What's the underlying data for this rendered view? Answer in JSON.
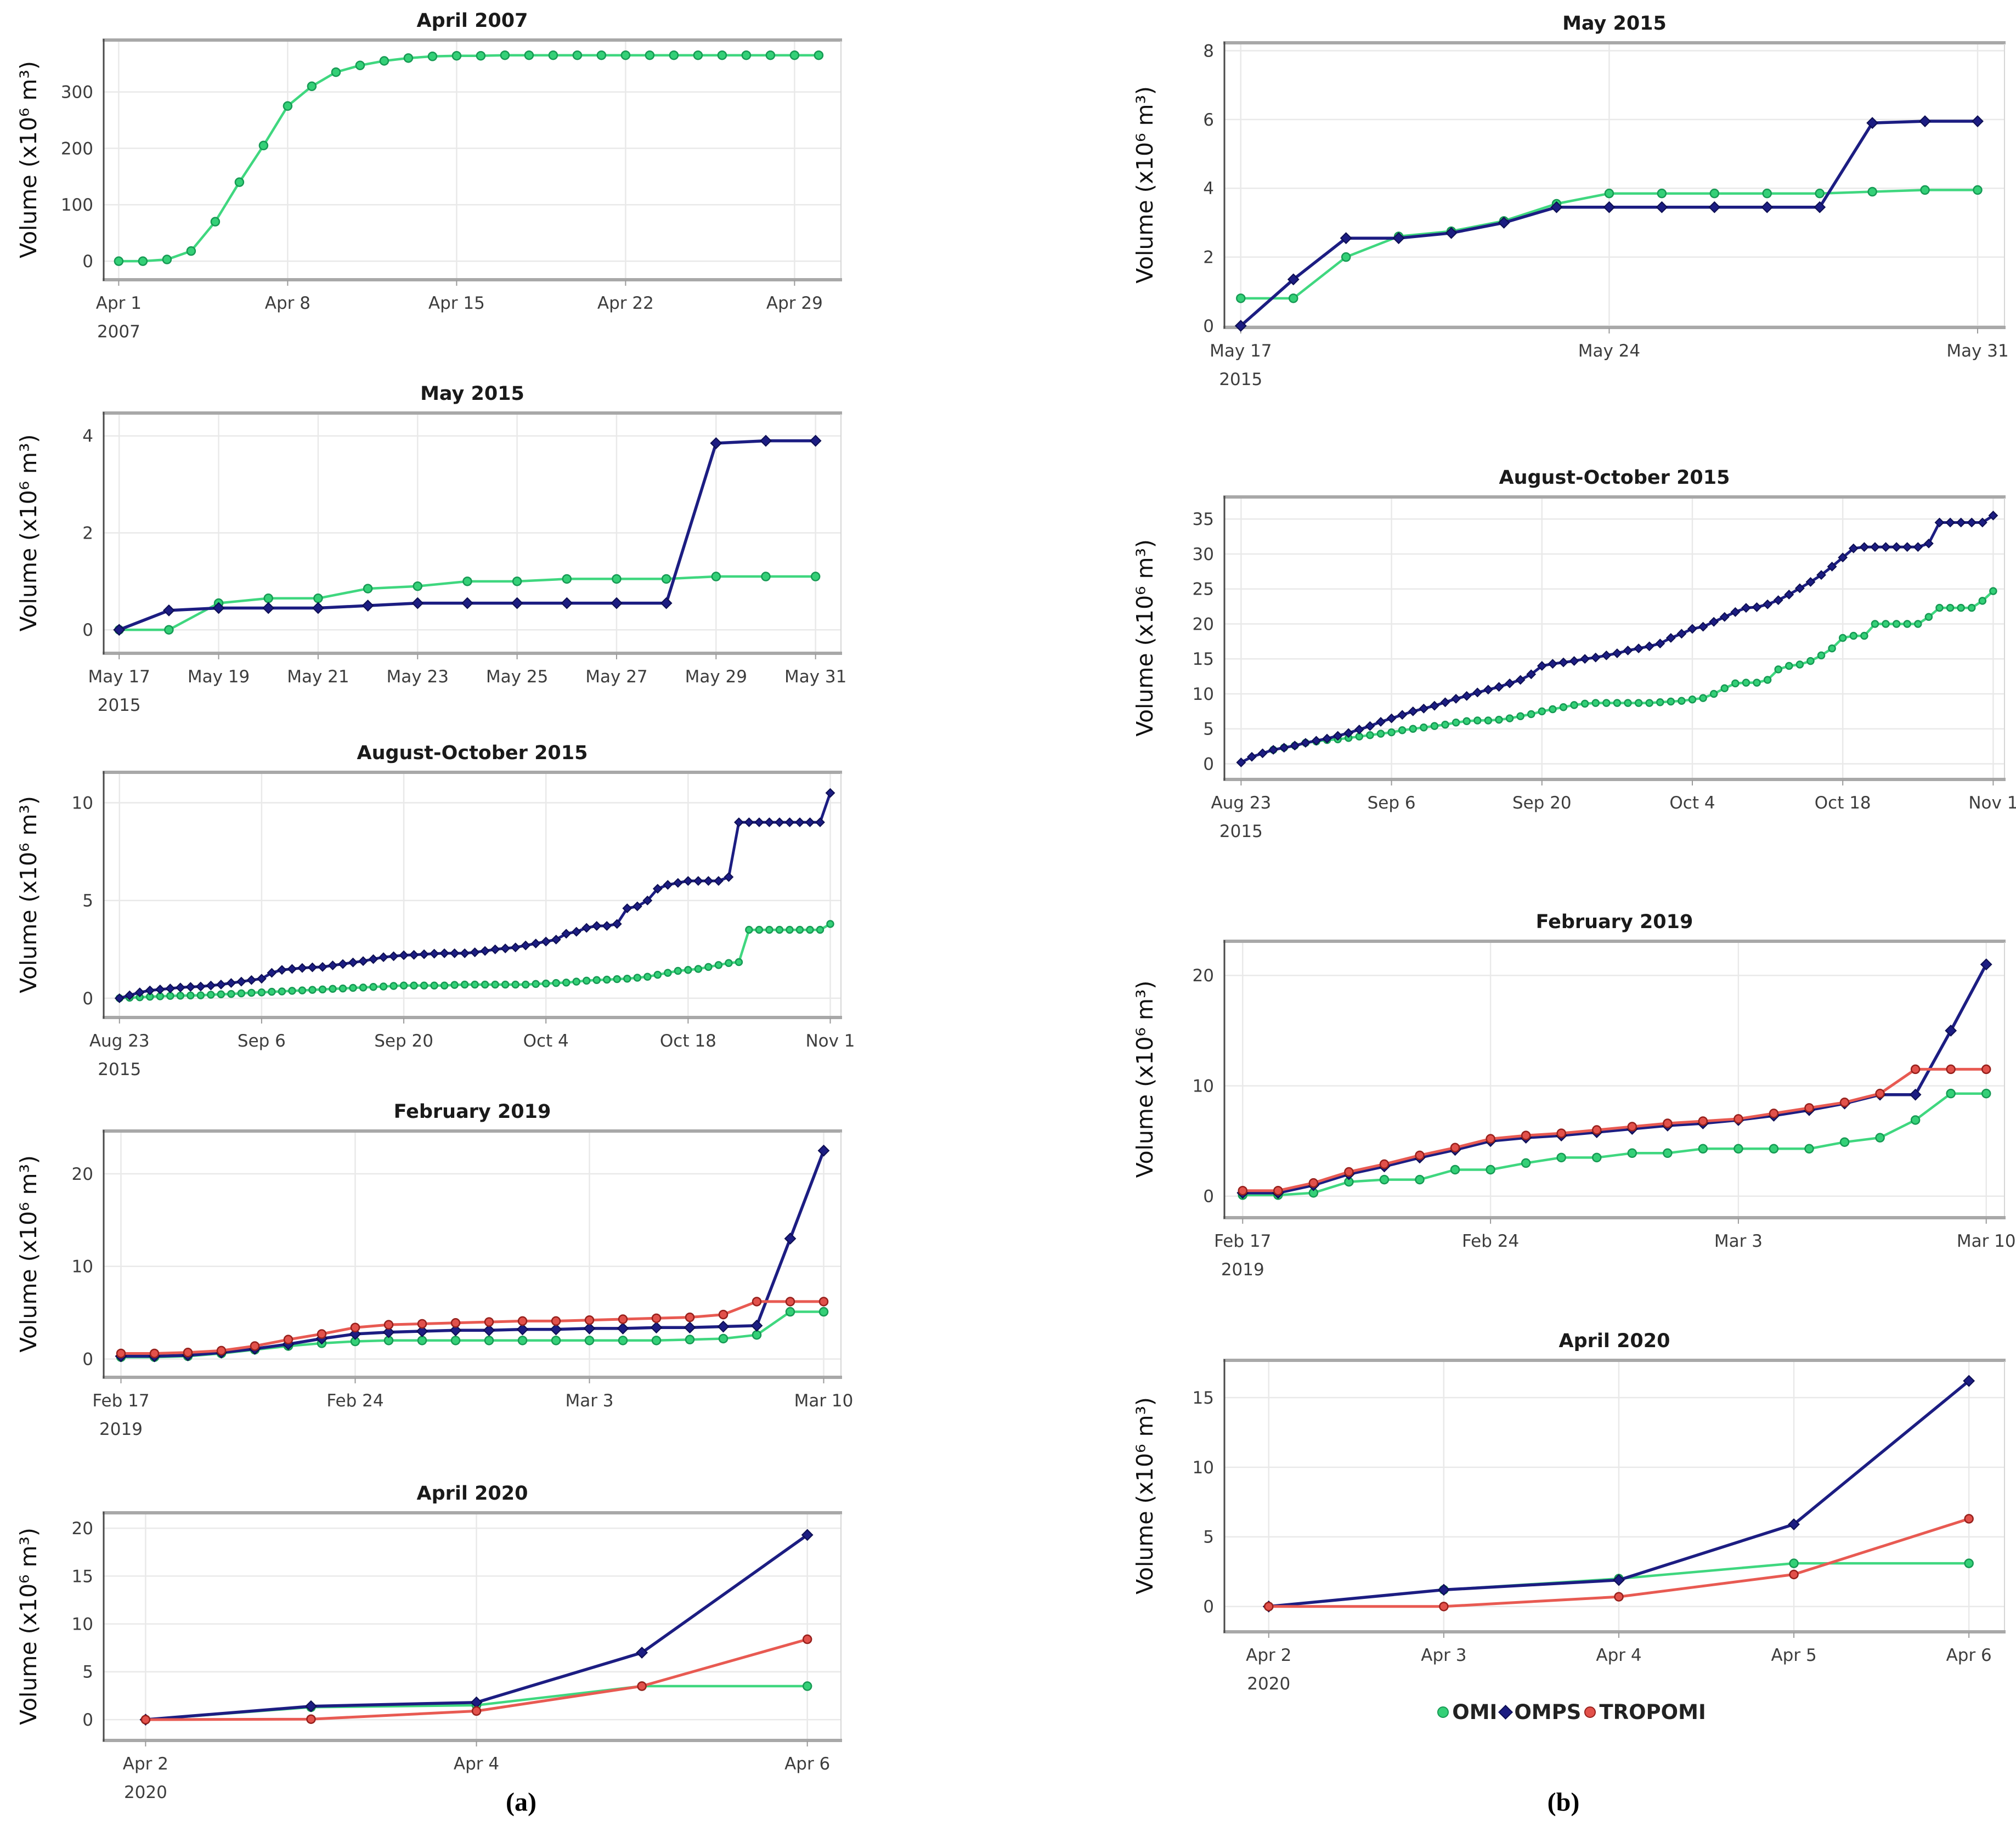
{
  "figure": {
    "y_axis_label": "Volume (x10⁶ m³)",
    "panels": [
      {
        "id": "a",
        "label": "(a)"
      },
      {
        "id": "b",
        "label": "(b)"
      }
    ],
    "legend": [
      {
        "label": "OMI",
        "series": "OMI"
      },
      {
        "label": "OMPS",
        "series": "OMPS"
      },
      {
        "label": "TROPOMI",
        "series": "TROPOMI"
      }
    ],
    "series_styles": {
      "OMI": {
        "line": "#3fd77f",
        "fill": "#34d077",
        "edge": "#169a54",
        "marker": "circle"
      },
      "OMPS": {
        "line": "#1c1d82",
        "fill": "#1c1d82",
        "edge": "#0d0e52",
        "marker": "diamond"
      },
      "TROPOMI": {
        "line": "#e85a52",
        "fill": "#e2514b",
        "edge": "#97201c",
        "marker": "circle"
      }
    },
    "frame_colors": {
      "grid": "#e9e9e9",
      "top_bottom": "#a8a8a8",
      "left": "#4a4a4a",
      "right": "#d6d6d6",
      "tick_text": "#3d3d3d",
      "title_text": "#1a1a1a"
    }
  },
  "chart_data": [
    {
      "id": "a1",
      "panel": "a",
      "type": "line",
      "title": "April 2007",
      "ylabel": "Volume (x10⁶ m³)",
      "yticks": [
        0,
        100,
        200,
        300
      ],
      "ylim": [
        -30,
        390
      ],
      "n_points": 30,
      "xpad": [
        0.6,
        0.9
      ],
      "x_ticks": [
        {
          "i": 0,
          "label": "Apr 1",
          "sub": "2007"
        },
        {
          "i": 7,
          "label": "Apr 8"
        },
        {
          "i": 14,
          "label": "Apr 15"
        },
        {
          "i": 21,
          "label": "Apr 22"
        },
        {
          "i": 28,
          "label": "Apr 29"
        }
      ],
      "series": [
        {
          "name": "OMI",
          "values": [
            0,
            0,
            3,
            18,
            70,
            140,
            205,
            275,
            310,
            335,
            347,
            355,
            360,
            363,
            364,
            364,
            365,
            365,
            365,
            365,
            365,
            365,
            365,
            365,
            365,
            365,
            365,
            365,
            365,
            365
          ]
        }
      ]
    },
    {
      "id": "a2",
      "panel": "a",
      "type": "line",
      "title": "May 2015",
      "ylabel": "Volume (x10⁶ m³)",
      "yticks": [
        0,
        2,
        4
      ],
      "ylim": [
        -0.45,
        4.45
      ],
      "n_points": 15,
      "xpad": [
        0.3,
        0.5
      ],
      "x_ticks": [
        {
          "i": 0,
          "label": "May 17",
          "sub": "2015"
        },
        {
          "i": 2,
          "label": "May 19"
        },
        {
          "i": 4,
          "label": "May 21"
        },
        {
          "i": 6,
          "label": "May 23"
        },
        {
          "i": 8,
          "label": "May 25"
        },
        {
          "i": 10,
          "label": "May 27"
        },
        {
          "i": 12,
          "label": "May 29"
        },
        {
          "i": 14,
          "label": "May 31"
        }
      ],
      "series": [
        {
          "name": "OMI",
          "values": [
            0,
            0,
            0.55,
            0.65,
            0.65,
            0.85,
            0.9,
            1.0,
            1.0,
            1.05,
            1.05,
            1.05,
            1.1,
            1.1,
            1.1
          ]
        },
        {
          "name": "OMPS",
          "values": [
            0,
            0.4,
            0.45,
            0.45,
            0.45,
            0.5,
            0.55,
            0.55,
            0.55,
            0.55,
            0.55,
            0.55,
            3.85,
            3.9,
            3.9
          ]
        }
      ]
    },
    {
      "id": "a3",
      "panel": "a",
      "type": "line",
      "title": "August-October 2015",
      "dense": true,
      "ylabel": "Volume (x10⁶ m³)",
      "yticks": [
        0,
        5,
        10
      ],
      "ylim": [
        -0.9,
        11.5
      ],
      "n_points": 71,
      "xpad": [
        1.5,
        1.0
      ],
      "x_ticks": [
        {
          "i": 0,
          "label": "Aug 23",
          "sub": "2015"
        },
        {
          "i": 14,
          "label": "Sep 6"
        },
        {
          "i": 28,
          "label": "Sep 20"
        },
        {
          "i": 42,
          "label": "Oct 4"
        },
        {
          "i": 56,
          "label": "Oct 18"
        },
        {
          "i": 70,
          "label": "Nov 1"
        }
      ],
      "series": [
        {
          "name": "OMI",
          "values": [
            0,
            0.03,
            0.05,
            0.08,
            0.1,
            0.12,
            0.13,
            0.14,
            0.15,
            0.18,
            0.2,
            0.22,
            0.25,
            0.28,
            0.3,
            0.33,
            0.35,
            0.38,
            0.4,
            0.43,
            0.45,
            0.48,
            0.5,
            0.53,
            0.55,
            0.58,
            0.6,
            0.63,
            0.65,
            0.65,
            0.65,
            0.65,
            0.65,
            0.68,
            0.7,
            0.7,
            0.7,
            0.7,
            0.7,
            0.7,
            0.7,
            0.73,
            0.75,
            0.78,
            0.8,
            0.85,
            0.9,
            0.93,
            0.95,
            0.98,
            1.0,
            1.05,
            1.1,
            1.2,
            1.3,
            1.4,
            1.45,
            1.5,
            1.6,
            1.7,
            1.8,
            1.85,
            3.5,
            3.5,
            3.5,
            3.5,
            3.5,
            3.5,
            3.5,
            3.5,
            3.8
          ]
        },
        {
          "name": "OMPS",
          "values": [
            0,
            0.15,
            0.3,
            0.4,
            0.45,
            0.5,
            0.55,
            0.58,
            0.6,
            0.65,
            0.7,
            0.78,
            0.85,
            0.93,
            1.0,
            1.3,
            1.45,
            1.5,
            1.55,
            1.58,
            1.6,
            1.68,
            1.75,
            1.83,
            1.9,
            2.0,
            2.1,
            2.15,
            2.2,
            2.22,
            2.25,
            2.28,
            2.3,
            2.3,
            2.3,
            2.35,
            2.42,
            2.5,
            2.55,
            2.6,
            2.7,
            2.8,
            2.9,
            3.0,
            3.3,
            3.4,
            3.6,
            3.7,
            3.7,
            3.8,
            4.6,
            4.7,
            5.0,
            5.6,
            5.8,
            5.9,
            6.0,
            6.0,
            6.0,
            6.0,
            6.2,
            9.0,
            9.0,
            9.0,
            9.0,
            9.0,
            9.0,
            9.0,
            9.0,
            9.0,
            10.5
          ]
        }
      ]
    },
    {
      "id": "a4",
      "panel": "a",
      "type": "line",
      "title": "February 2019",
      "ylabel": "Volume (x10⁶ m³)",
      "yticks": [
        0,
        10,
        20
      ],
      "ylim": [
        -1.8,
        24.5
      ],
      "n_points": 22,
      "xpad": [
        0.5,
        0.5
      ],
      "x_ticks": [
        {
          "i": 0,
          "label": "Feb 17",
          "sub": "2019"
        },
        {
          "i": 7,
          "label": "Feb 24"
        },
        {
          "i": 14,
          "label": "Mar 3"
        },
        {
          "i": 21,
          "label": "Mar 10"
        }
      ],
      "series": [
        {
          "name": "OMI",
          "values": [
            0.2,
            0.2,
            0.3,
            0.6,
            1.0,
            1.4,
            1.7,
            1.9,
            2.0,
            2.0,
            2.0,
            2.0,
            2.0,
            2.0,
            2.0,
            2.0,
            2.0,
            2.1,
            2.2,
            2.6,
            5.1,
            5.1
          ]
        },
        {
          "name": "OMPS",
          "values": [
            0.3,
            0.3,
            0.4,
            0.7,
            1.1,
            1.6,
            2.2,
            2.7,
            2.9,
            3.0,
            3.1,
            3.1,
            3.2,
            3.2,
            3.3,
            3.3,
            3.4,
            3.4,
            3.5,
            3.6,
            13.0,
            22.5
          ]
        },
        {
          "name": "TROPOMI",
          "values": [
            0.6,
            0.6,
            0.7,
            0.9,
            1.4,
            2.1,
            2.7,
            3.4,
            3.7,
            3.8,
            3.9,
            4.0,
            4.1,
            4.1,
            4.2,
            4.3,
            4.4,
            4.5,
            4.8,
            6.2,
            6.2,
            6.2
          ]
        }
      ]
    },
    {
      "id": "a5",
      "panel": "a",
      "type": "line",
      "title": "April 2020",
      "ylabel": "Volume (x10⁶ m³)",
      "yticks": [
        0,
        5,
        10,
        15,
        20
      ],
      "ylim": [
        -2,
        21.5
      ],
      "n_points": 5,
      "xpad": [
        0.25,
        0.2
      ],
      "x_ticks": [
        {
          "i": 0,
          "label": "Apr 2",
          "sub": "2020"
        },
        {
          "i": 2,
          "label": "Apr 4"
        },
        {
          "i": 4,
          "label": "Apr 6"
        }
      ],
      "series": [
        {
          "name": "OMI",
          "values": [
            0,
            1.3,
            1.5,
            3.5,
            3.5
          ]
        },
        {
          "name": "OMPS",
          "values": [
            0,
            1.4,
            1.8,
            7.0,
            19.3
          ]
        },
        {
          "name": "TROPOMI",
          "values": [
            0,
            0.05,
            0.9,
            3.5,
            8.4
          ]
        }
      ]
    },
    {
      "id": "b1",
      "panel": "b",
      "type": "line",
      "title": "May 2015",
      "ylabel": "Volume (x10⁶ m³)",
      "yticks": [
        0,
        2,
        4,
        6,
        8
      ],
      "ylim": [
        0,
        8.2
      ],
      "n_points": 15,
      "xpad": [
        0.3,
        0.5
      ],
      "x_ticks": [
        {
          "i": 0,
          "label": "May 17",
          "sub": "2015"
        },
        {
          "i": 7,
          "label": "May 24"
        },
        {
          "i": 14,
          "label": "May 31"
        }
      ],
      "series": [
        {
          "name": "OMI",
          "values": [
            0.8,
            0.8,
            2.0,
            2.6,
            2.75,
            3.05,
            3.55,
            3.85,
            3.85,
            3.85,
            3.85,
            3.85,
            3.9,
            3.95,
            3.95
          ]
        },
        {
          "name": "OMPS",
          "values": [
            0,
            1.35,
            2.55,
            2.55,
            2.7,
            3.0,
            3.45,
            3.45,
            3.45,
            3.45,
            3.45,
            3.45,
            5.9,
            5.95,
            5.95
          ]
        }
      ]
    },
    {
      "id": "b2",
      "panel": "b",
      "type": "line",
      "title": "August-October 2015",
      "dense": true,
      "ylabel": "Volume (x10⁶ m³)",
      "yticks": [
        0,
        5,
        10,
        15,
        20,
        25,
        30,
        35
      ],
      "ylim": [
        -2,
        38
      ],
      "n_points": 71,
      "xpad": [
        1.5,
        1.0
      ],
      "x_ticks": [
        {
          "i": 0,
          "label": "Aug 23",
          "sub": "2015"
        },
        {
          "i": 14,
          "label": "Sep 6"
        },
        {
          "i": 28,
          "label": "Sep 20"
        },
        {
          "i": 42,
          "label": "Oct 4"
        },
        {
          "i": 56,
          "label": "Oct 18"
        },
        {
          "i": 70,
          "label": "Nov 1"
        }
      ],
      "series": [
        {
          "name": "OMI",
          "values": [
            null,
            null,
            null,
            2.0,
            2.3,
            2.6,
            3.0,
            3.2,
            3.4,
            3.5,
            3.7,
            3.9,
            4.1,
            4.3,
            4.5,
            4.8,
            5.0,
            5.2,
            5.4,
            5.6,
            5.9,
            6.1,
            6.2,
            6.2,
            6.3,
            6.5,
            6.8,
            7.1,
            7.5,
            7.8,
            8.1,
            8.4,
            8.6,
            8.7,
            8.7,
            8.7,
            8.7,
            8.7,
            8.7,
            8.8,
            8.9,
            9.0,
            9.2,
            9.4,
            10.0,
            10.8,
            11.5,
            11.6,
            11.6,
            12.0,
            13.5,
            14.0,
            14.2,
            14.7,
            15.5,
            16.5,
            18.0,
            18.3,
            18.3,
            20.0,
            20.0,
            20.0,
            20.0,
            20.0,
            21.0,
            22.3,
            22.3,
            22.3,
            22.3,
            23.3,
            24.7
          ]
        },
        {
          "name": "OMPS",
          "values": [
            0.2,
            1.0,
            1.5,
            2.0,
            2.3,
            2.6,
            3.0,
            3.3,
            3.6,
            4.0,
            4.4,
            4.9,
            5.4,
            6.0,
            6.5,
            7.0,
            7.5,
            7.9,
            8.3,
            8.8,
            9.3,
            9.7,
            10.2,
            10.6,
            11.0,
            11.5,
            12.0,
            12.8,
            14.0,
            14.3,
            14.5,
            14.7,
            15.0,
            15.2,
            15.5,
            15.8,
            16.2,
            16.5,
            16.8,
            17.2,
            18.0,
            18.6,
            19.3,
            19.6,
            20.3,
            21.0,
            21.7,
            22.3,
            22.4,
            22.8,
            23.4,
            24.2,
            25.1,
            26.0,
            27.0,
            28.2,
            29.5,
            30.8,
            31.0,
            31.0,
            31.0,
            31.0,
            31.0,
            31.0,
            31.5,
            34.5,
            34.5,
            34.5,
            34.5,
            34.5,
            35.5
          ]
        }
      ]
    },
    {
      "id": "b3",
      "panel": "b",
      "type": "line",
      "title": "February 2019",
      "ylabel": "Volume (x10⁶ m³)",
      "yticks": [
        0,
        10,
        20
      ],
      "ylim": [
        -1.8,
        23
      ],
      "n_points": 22,
      "xpad": [
        0.5,
        0.5
      ],
      "x_ticks": [
        {
          "i": 0,
          "label": "Feb 17",
          "sub": "2019"
        },
        {
          "i": 7,
          "label": "Feb 24"
        },
        {
          "i": 14,
          "label": "Mar 3"
        },
        {
          "i": 21,
          "label": "Mar 10"
        }
      ],
      "series": [
        {
          "name": "OMI",
          "values": [
            0.1,
            0.1,
            0.3,
            1.3,
            1.5,
            1.5,
            2.4,
            2.4,
            3.0,
            3.5,
            3.5,
            3.9,
            3.9,
            4.3,
            4.3,
            4.3,
            4.3,
            4.9,
            5.3,
            6.9,
            9.3,
            9.3
          ]
        },
        {
          "name": "OMPS",
          "values": [
            0.3,
            0.3,
            1.0,
            2.0,
            2.7,
            3.5,
            4.2,
            5.0,
            5.3,
            5.5,
            5.8,
            6.1,
            6.4,
            6.6,
            6.9,
            7.3,
            7.8,
            8.4,
            9.2,
            9.2,
            15.0,
            21.0
          ]
        },
        {
          "name": "TROPOMI",
          "values": [
            0.5,
            0.5,
            1.2,
            2.2,
            2.9,
            3.7,
            4.4,
            5.2,
            5.5,
            5.7,
            6.0,
            6.3,
            6.6,
            6.8,
            7.0,
            7.5,
            8.0,
            8.5,
            9.3,
            11.5,
            11.5,
            11.5
          ]
        }
      ]
    },
    {
      "id": "b4",
      "panel": "b",
      "type": "line",
      "title": "April 2020",
      "ylabel": "Volume (x10⁶ m³)",
      "yticks": [
        0,
        5,
        10,
        15
      ],
      "ylim": [
        -1.7,
        17.6
      ],
      "n_points": 5,
      "xpad": [
        0.25,
        0.2
      ],
      "x_ticks": [
        {
          "i": 0,
          "label": "Apr 2",
          "sub": "2020"
        },
        {
          "i": 1,
          "label": "Apr 3"
        },
        {
          "i": 2,
          "label": "Apr 4"
        },
        {
          "i": 3,
          "label": "Apr 5"
        },
        {
          "i": 4,
          "label": "Apr 6"
        }
      ],
      "series": [
        {
          "name": "OMI",
          "values": [
            0,
            1.2,
            2.0,
            3.1,
            3.1
          ]
        },
        {
          "name": "OMPS",
          "values": [
            0,
            1.2,
            1.9,
            5.9,
            16.2
          ]
        },
        {
          "name": "TROPOMI",
          "values": [
            0,
            0,
            0.7,
            2.3,
            6.3
          ]
        }
      ]
    }
  ]
}
